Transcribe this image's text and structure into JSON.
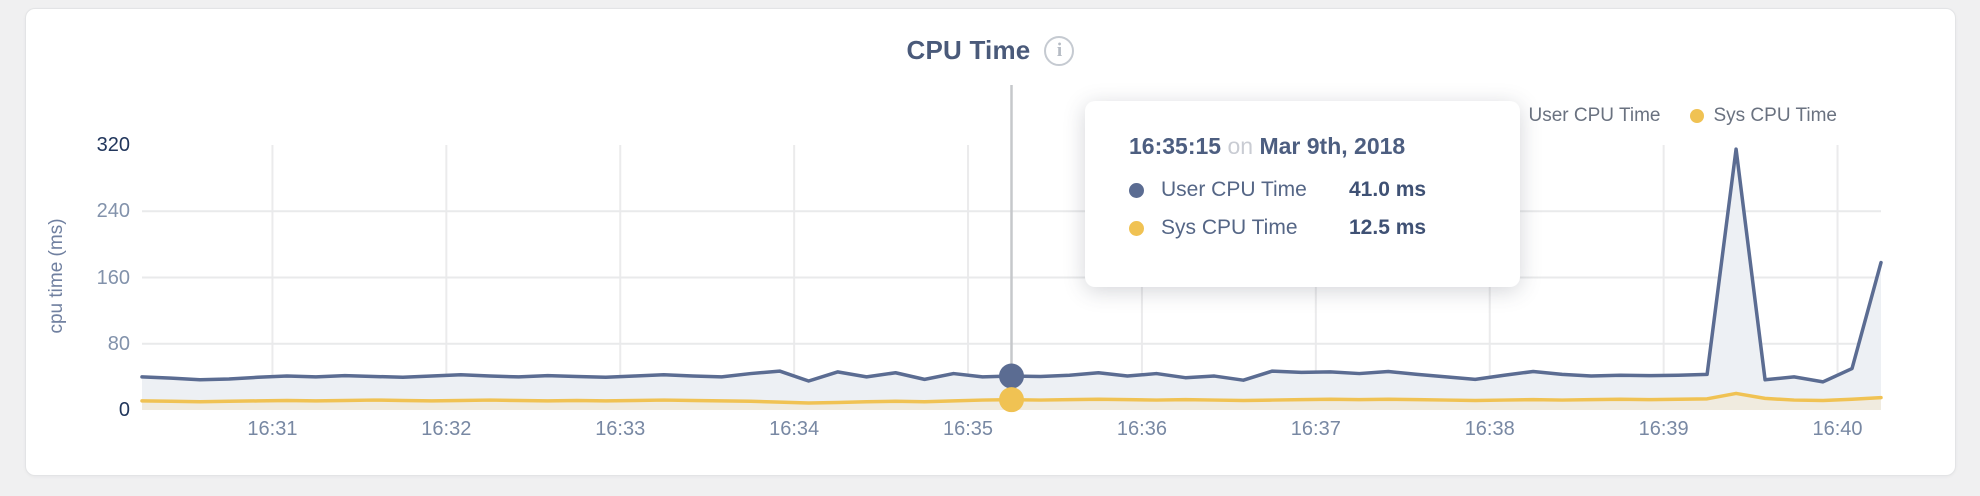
{
  "header": {
    "title": "CPU Time",
    "info_glyph": "i"
  },
  "legend": {
    "items": [
      {
        "label": "User CPU Time",
        "color": "#5b6c92"
      },
      {
        "label": "Sys CPU Time",
        "color": "#f0c253"
      }
    ]
  },
  "chart_data": {
    "type": "line",
    "title": "CPU Time",
    "xlabel": "",
    "ylabel": "cpu time (ms)",
    "ylim": [
      0,
      320
    ],
    "grid": true,
    "legend_position": "top-right",
    "y_ticks": [
      {
        "label": "0",
        "v": 0
      },
      {
        "label": "80",
        "v": 80
      },
      {
        "label": "160",
        "v": 160
      },
      {
        "label": "240",
        "v": 240
      },
      {
        "label": "320",
        "v": 320
      }
    ],
    "x_ticks": [
      {
        "label": "16:31",
        "t": 59460
      },
      {
        "label": "16:32",
        "t": 59520
      },
      {
        "label": "16:33",
        "t": 59580
      },
      {
        "label": "16:34",
        "t": 59640
      },
      {
        "label": "16:35",
        "t": 59700
      },
      {
        "label": "16:36",
        "t": 59760
      },
      {
        "label": "16:37",
        "t": 59820
      },
      {
        "label": "16:38",
        "t": 59880
      },
      {
        "label": "16:39",
        "t": 59940
      },
      {
        "label": "16:40",
        "t": 60000
      }
    ],
    "x_seconds": [
      59415,
      59425,
      59435,
      59445,
      59455,
      59465,
      59475,
      59485,
      59495,
      59505,
      59515,
      59525,
      59535,
      59545,
      59555,
      59565,
      59575,
      59585,
      59595,
      59605,
      59615,
      59625,
      59635,
      59645,
      59655,
      59665,
      59675,
      59685,
      59695,
      59705,
      59715,
      59725,
      59735,
      59745,
      59755,
      59765,
      59775,
      59785,
      59795,
      59805,
      59815,
      59825,
      59835,
      59845,
      59855,
      59865,
      59875,
      59885,
      59895,
      59905,
      59915,
      59925,
      59935,
      59945,
      59955,
      59965,
      59975,
      59985,
      59995,
      60005,
      60015
    ],
    "series": [
      {
        "name": "User CPU Time",
        "color": "#5b6c92",
        "fill": "#edf0f4",
        "values": [
          40,
          38.5,
          36.5,
          37.5,
          39.5,
          41,
          40,
          41.5,
          40.5,
          39.5,
          41,
          42.5,
          41,
          40,
          41.5,
          40.5,
          39.5,
          41,
          42.5,
          41,
          40,
          44,
          47,
          35,
          46,
          40,
          45,
          37,
          44,
          40,
          41,
          40.5,
          42,
          45,
          41,
          44,
          39,
          41,
          36,
          47,
          45.5,
          46,
          44,
          46.5,
          43,
          40,
          37,
          42,
          46.5,
          43,
          41,
          42,
          41.5,
          42,
          43,
          315,
          36.5,
          40,
          34,
          50,
          178
        ]
      },
      {
        "name": "Sys CPU Time",
        "color": "#f0c253",
        "fill": "#f0ebdf",
        "values": [
          11,
          10.5,
          10,
          10.5,
          11,
          11.5,
          11,
          11.5,
          12,
          11.5,
          11,
          11.5,
          12,
          11.5,
          11,
          11.5,
          11,
          11.5,
          12,
          11.5,
          11,
          10.5,
          9.5,
          8.5,
          9,
          10,
          10.5,
          10,
          11,
          12,
          12.5,
          12,
          12.5,
          13,
          12.5,
          12,
          12.5,
          12,
          11.5,
          12,
          12.5,
          13,
          12.5,
          13,
          12.5,
          12,
          11.5,
          12,
          12.5,
          12,
          12.5,
          13,
          12.5,
          13,
          13.5,
          20,
          14,
          12,
          11.5,
          13,
          15
        ]
      }
    ]
  },
  "hover": {
    "time_seconds": 59715,
    "values": [
      41.0,
      12.5
    ]
  },
  "tooltip": {
    "time": "16:35:15",
    "conjunction": "on",
    "date": "Mar 9th, 2018",
    "rows": [
      {
        "label": "User CPU Time",
        "value": "41.0 ms",
        "color": "#5b6c92"
      },
      {
        "label": "Sys CPU Time",
        "value": "12.5 ms",
        "color": "#f0c253"
      }
    ]
  }
}
